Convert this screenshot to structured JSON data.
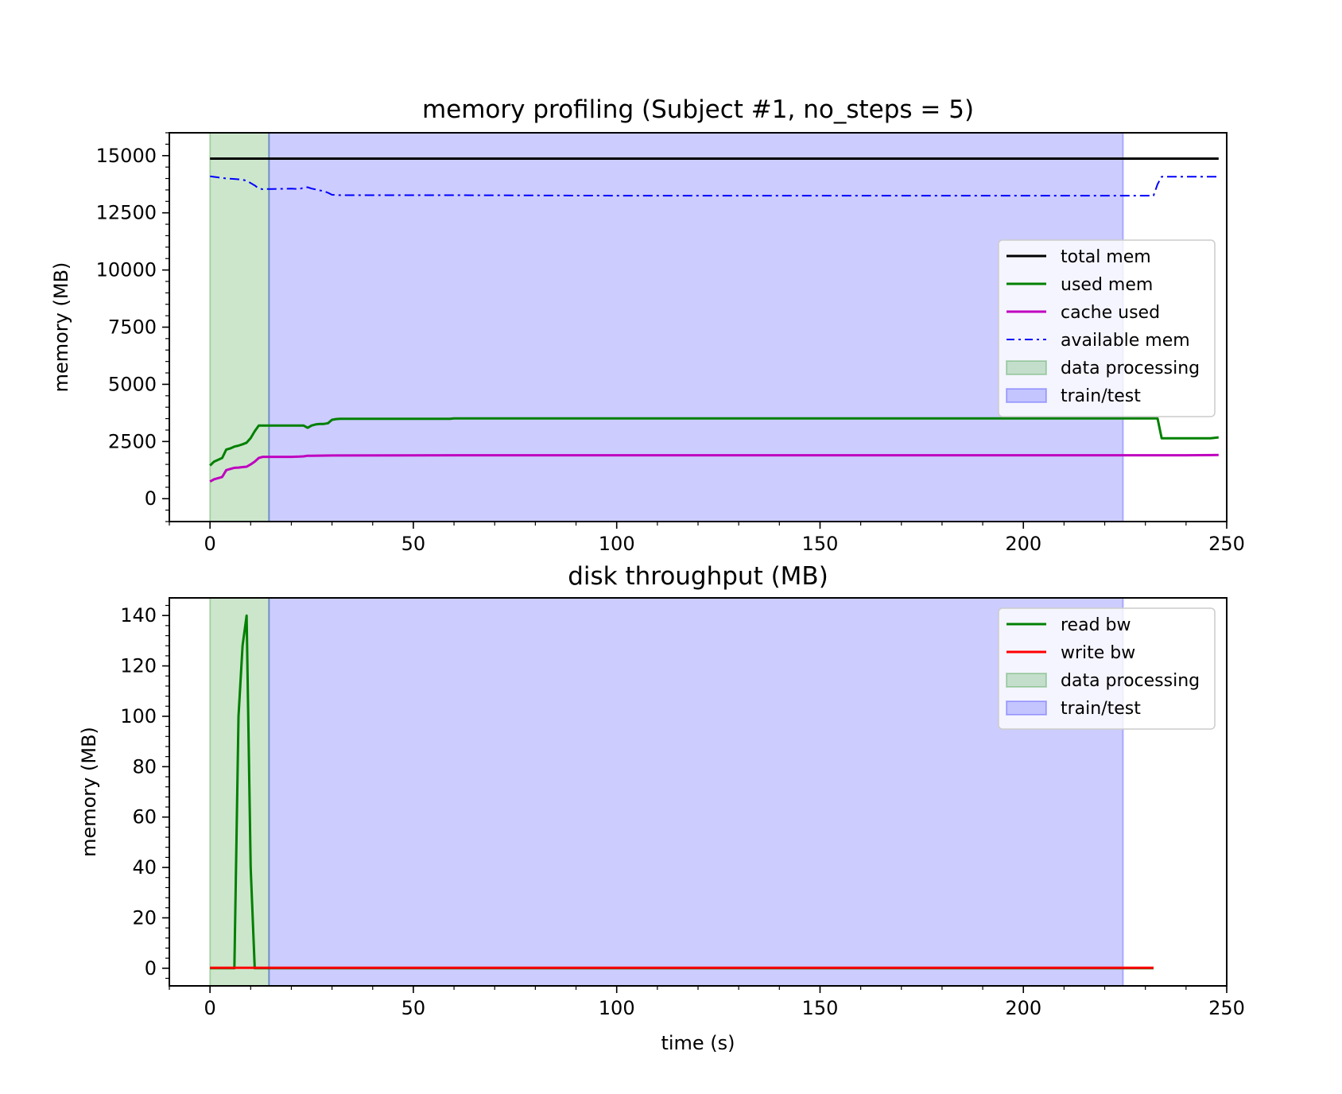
{
  "chart_data": [
    {
      "type": "line",
      "title": "memory profiling (Subject #1, no_steps = 5)",
      "xlabel": "",
      "ylabel": "memory (MB)",
      "xlim": [
        -10,
        250
      ],
      "ylim": [
        -1000,
        16000
      ],
      "xticks": [
        0,
        50,
        100,
        150,
        200,
        250
      ],
      "yticks": [
        0,
        2500,
        5000,
        7500,
        10000,
        12500,
        15000
      ],
      "legend_position": "center-right",
      "series": [
        {
          "name": "total mem",
          "color": "#000000",
          "style": "solid",
          "x": [
            0,
            248
          ],
          "y": [
            14870,
            14870
          ]
        },
        {
          "name": "used mem",
          "color": "#008000",
          "style": "solid",
          "x": [
            0,
            1,
            3,
            4,
            5,
            6,
            7,
            8,
            9,
            10,
            11,
            12,
            13,
            14,
            15,
            16,
            17,
            18,
            19,
            20,
            21,
            22,
            23,
            24,
            25,
            26,
            27,
            28,
            29,
            30,
            31,
            32,
            40,
            50,
            59,
            60,
            80,
            100,
            150,
            200,
            232,
            233,
            234,
            240,
            246,
            248
          ],
          "y": [
            1450,
            1620,
            1780,
            2150,
            2200,
            2280,
            2320,
            2380,
            2450,
            2650,
            2950,
            3200,
            3200,
            3200,
            3200,
            3200,
            3200,
            3200,
            3200,
            3200,
            3200,
            3200,
            3200,
            3100,
            3200,
            3250,
            3270,
            3270,
            3300,
            3450,
            3480,
            3490,
            3490,
            3490,
            3490,
            3510,
            3510,
            3510,
            3510,
            3510,
            3510,
            3510,
            2640,
            2640,
            2640,
            2680
          ]
        },
        {
          "name": "cache used",
          "color": "#bf00bf",
          "style": "solid",
          "x": [
            0,
            1,
            3,
            4,
            5,
            6,
            7,
            8,
            9,
            10,
            11,
            12,
            13,
            20,
            22,
            23,
            24,
            25,
            30,
            60,
            100,
            150,
            200,
            240,
            248
          ],
          "y": [
            750,
            850,
            950,
            1250,
            1300,
            1350,
            1360,
            1380,
            1400,
            1500,
            1620,
            1780,
            1830,
            1830,
            1840,
            1850,
            1880,
            1880,
            1890,
            1900,
            1900,
            1900,
            1900,
            1900,
            1910
          ]
        },
        {
          "name": "available mem",
          "color": "#0000ff",
          "style": "dashdot",
          "x": [
            0,
            2,
            4,
            6,
            8,
            9,
            10,
            11,
            12,
            13,
            14,
            15,
            20,
            22,
            23,
            24,
            25,
            26,
            27,
            28,
            29,
            30,
            32,
            60,
            100,
            150,
            200,
            232,
            233,
            234,
            240,
            248
          ],
          "y": [
            14100,
            14050,
            14000,
            13980,
            13950,
            13900,
            13800,
            13700,
            13560,
            13530,
            13540,
            13540,
            13560,
            13540,
            13600,
            13620,
            13560,
            13520,
            13480,
            13450,
            13380,
            13290,
            13270,
            13270,
            13250,
            13250,
            13250,
            13250,
            13750,
            14080,
            14080,
            14080
          ]
        }
      ],
      "regions": [
        {
          "name": "data processing",
          "x0": 0,
          "x1": 14.5,
          "color": "#008000",
          "opacity": 0.2
        },
        {
          "name": "train/test",
          "x0": 14.5,
          "x1": 224.5,
          "color": "#0000ff",
          "opacity": 0.2
        }
      ]
    },
    {
      "type": "line",
      "title": "disk throughput (MB)",
      "xlabel": "time (s)",
      "ylabel": "memory (MB)",
      "xlim": [
        -10,
        250
      ],
      "ylim": [
        -7,
        147
      ],
      "xticks": [
        0,
        50,
        100,
        150,
        200,
        250
      ],
      "yticks": [
        0,
        20,
        40,
        60,
        80,
        100,
        120,
        140
      ],
      "legend_position": "top-right",
      "series": [
        {
          "name": "read bw",
          "color": "#008000",
          "style": "solid",
          "x": [
            0,
            6,
            7,
            8,
            9,
            10,
            11,
            12,
            20,
            100,
            200,
            232
          ],
          "y": [
            0,
            0,
            100,
            128,
            140,
            40,
            0,
            0,
            0,
            0,
            0,
            0
          ]
        },
        {
          "name": "write bw",
          "color": "#ff0000",
          "style": "solid",
          "x": [
            0,
            50,
            100,
            150,
            200,
            232
          ],
          "y": [
            0.2,
            0.2,
            0.2,
            0.2,
            0.2,
            0.2
          ]
        }
      ],
      "regions": [
        {
          "name": "data processing",
          "x0": 0,
          "x1": 14.5,
          "color": "#008000",
          "opacity": 0.2
        },
        {
          "name": "train/test",
          "x0": 14.5,
          "x1": 224.5,
          "color": "#0000ff",
          "opacity": 0.2
        }
      ]
    }
  ]
}
